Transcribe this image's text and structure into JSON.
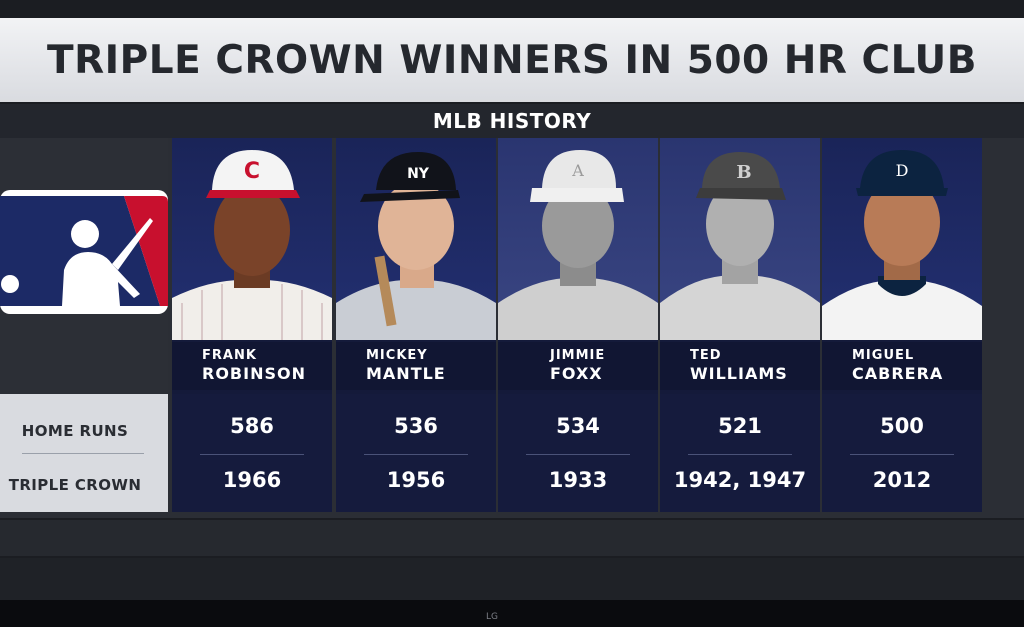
{
  "title": "TRIPLE CROWN WINNERS IN 500 HR CLUB",
  "subtitle": "MLB HISTORY",
  "stat_labels": {
    "home_runs": "HOME RUNS",
    "triple_crown": "TRIPLE CROWN"
  },
  "players": [
    {
      "first": "FRANK",
      "last": "ROBINSON",
      "home_runs": "586",
      "triple_crown": "1966",
      "cap_letter": "C",
      "photo": "color"
    },
    {
      "first": "MICKEY",
      "last": "MANTLE",
      "home_runs": "536",
      "triple_crown": "1956",
      "cap_letter": "NY",
      "photo": "color"
    },
    {
      "first": "JIMMIE",
      "last": "FOXX",
      "home_runs": "534",
      "triple_crown": "1933",
      "cap_letter": "A",
      "photo": "bw"
    },
    {
      "first": "TED",
      "last": "WILLIAMS",
      "home_runs": "521",
      "triple_crown": "1942, 1947",
      "cap_letter": "B",
      "photo": "bw"
    },
    {
      "first": "MIGUEL",
      "last": "CABRERA",
      "home_runs": "500",
      "triple_crown": "2012",
      "cap_letter": "D",
      "photo": "color"
    }
  ],
  "tv_brand": "LG",
  "colors": {
    "card_bg": "#141a3a",
    "title_bg": "#e6e7ea",
    "logo_red": "#c8102e",
    "logo_blue": "#1c2a66"
  },
  "icons": {
    "league_logo": "mlb-logo-icon"
  }
}
